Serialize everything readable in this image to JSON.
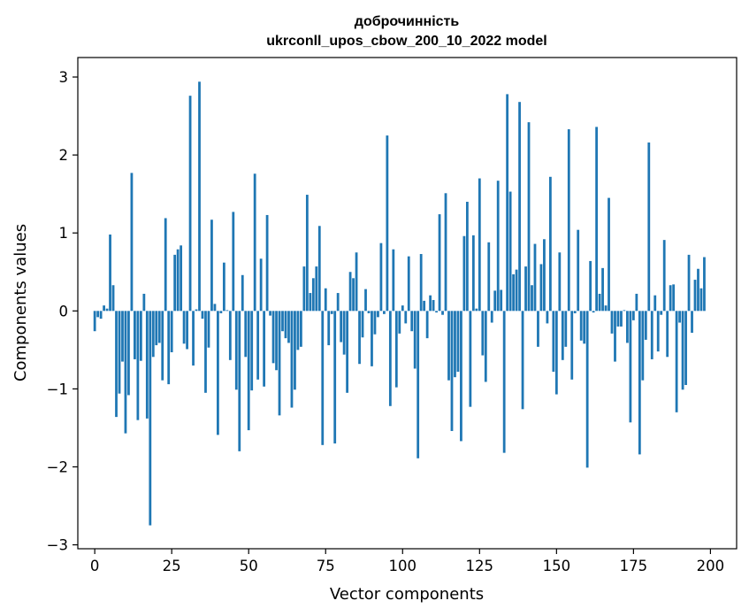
{
  "chart_data": {
    "type": "bar",
    "title_line1": "доброчинність",
    "title_line2": "ukrconll_upos_cbow_200_10_2022 model",
    "xlabel": "Vector components",
    "ylabel": "Components values",
    "xlim": [
      -5.5,
      208.5
    ],
    "ylim": [
      -3.05,
      3.25
    ],
    "xticks": [
      0,
      25,
      50,
      75,
      100,
      125,
      150,
      175,
      200
    ],
    "yticks": [
      -3,
      -2,
      -1,
      0,
      1,
      2,
      3
    ],
    "ytick_labels": [
      "−3",
      "−2",
      "−1",
      "0",
      "1",
      "2",
      "3"
    ],
    "grid": false,
    "bar_color": "#1f77b4",
    "values": [
      -0.26,
      -0.08,
      -0.1,
      0.07,
      0.03,
      0.98,
      0.33,
      -1.36,
      -1.06,
      -0.65,
      -1.57,
      -1.08,
      1.77,
      -0.62,
      -1.4,
      -0.64,
      0.22,
      -1.38,
      -2.75,
      -0.59,
      -0.44,
      -0.41,
      -0.89,
      1.19,
      -0.94,
      -0.53,
      0.72,
      0.79,
      0.84,
      -0.42,
      -0.49,
      2.76,
      -0.7,
      0.02,
      2.94,
      -0.1,
      -1.05,
      -0.47,
      1.17,
      0.09,
      -1.59,
      -0.03,
      0.62,
      0.01,
      -0.63,
      1.27,
      -1.01,
      -1.8,
      0.46,
      -0.59,
      -1.53,
      -1.02,
      1.76,
      -0.88,
      0.67,
      -0.97,
      1.23,
      -0.06,
      -0.67,
      -0.76,
      -1.34,
      -0.26,
      -0.35,
      -0.41,
      -1.24,
      -1.01,
      -0.5,
      -0.46,
      0.57,
      1.49,
      0.23,
      0.42,
      0.57,
      1.09,
      -1.72,
      0.29,
      -0.44,
      -0.04,
      -1.7,
      0.23,
      -0.4,
      -0.56,
      -1.05,
      0.5,
      0.42,
      0.75,
      -0.68,
      -0.34,
      0.28,
      -0.03,
      -0.71,
      -0.3,
      -0.08,
      0.87,
      -0.04,
      2.25,
      -1.22,
      0.79,
      -0.98,
      -0.29,
      0.07,
      -0.16,
      0.7,
      -0.26,
      -0.74,
      -1.89,
      0.73,
      0.13,
      -0.35,
      0.2,
      0.14,
      -0.02,
      1.24,
      -0.05,
      1.51,
      -0.89,
      -1.54,
      -0.85,
      -0.78,
      -1.67,
      0.96,
      1.4,
      -1.23,
      0.97,
      0.03,
      1.7,
      -0.57,
      -0.91,
      0.88,
      -0.15,
      0.26,
      1.67,
      0.27,
      -1.82,
      2.78,
      1.53,
      0.47,
      0.53,
      2.68,
      -1.26,
      0.57,
      2.42,
      0.33,
      0.86,
      -0.46,
      0.6,
      0.92,
      -0.16,
      1.72,
      -0.78,
      -1.07,
      0.75,
      -0.63,
      -0.46,
      2.33,
      -0.88,
      -0.03,
      1.04,
      -0.38,
      -0.42,
      -2.01,
      0.64,
      -0.02,
      2.36,
      0.22,
      0.55,
      0.07,
      1.45,
      -0.29,
      -0.65,
      -0.2,
      -0.2,
      0.01,
      -0.41,
      -1.43,
      -0.12,
      0.22,
      -1.84,
      -0.89,
      -0.37,
      2.16,
      -0.62,
      0.2,
      -0.52,
      -0.05,
      0.91,
      -0.59,
      0.33,
      0.34,
      -1.3,
      -0.15,
      -1.01,
      -0.95,
      0.72,
      -0.28,
      0.4,
      0.54,
      0.29,
      0.69,
      0.0
    ]
  }
}
